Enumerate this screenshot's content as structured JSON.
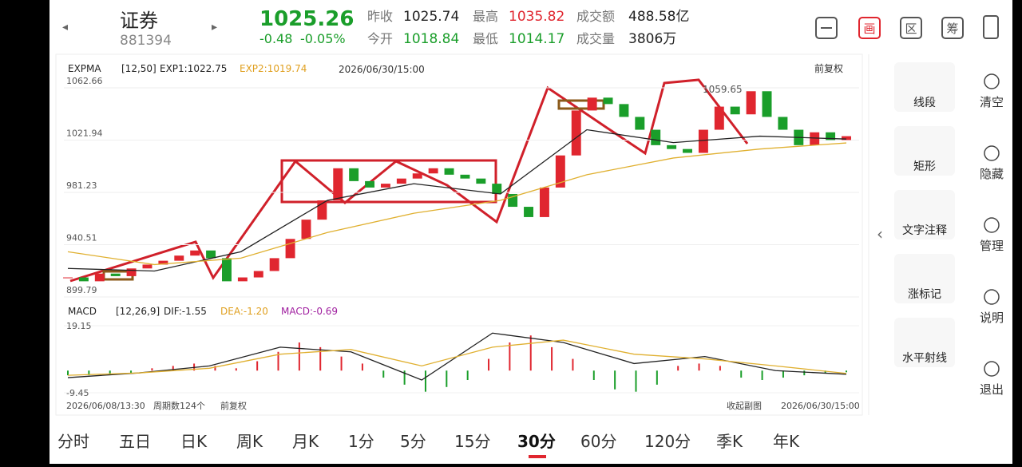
{
  "header": {
    "name": "证券",
    "code": "881394",
    "price": "1025.26",
    "change": "-0.48",
    "change_pct": "-0.05%",
    "stats": [
      [
        "昨收",
        "1025.74"
      ],
      [
        "最高",
        "1035.82"
      ],
      [
        "成交额",
        "488.58亿"
      ],
      [
        "今开",
        "1018.84"
      ],
      [
        "最低",
        "1014.17"
      ],
      [
        "成交量",
        "3806万"
      ]
    ],
    "icons": [
      "画",
      "区",
      "筹"
    ]
  },
  "main_chart": {
    "indicator": "EXPMA",
    "params": "[12,50]",
    "exp1_label": "EXP1:1022.75",
    "exp2_label": "EXP2:1019.74",
    "time": "2026/06/30/15:00",
    "adjust": "前复权",
    "high_note": "1059.65",
    "ylim": [
      899.79,
      1062.66
    ],
    "yticks": [
      899.79,
      940.51,
      981.23,
      1021.94,
      1062.66
    ],
    "close": [
      915,
      912,
      918,
      916,
      922,
      925,
      928,
      932,
      936,
      930,
      912,
      915,
      920,
      930,
      945,
      960,
      975,
      1000,
      990,
      985,
      988,
      992,
      996,
      1000,
      995,
      992,
      988,
      980,
      970,
      962,
      985,
      1010,
      1045,
      1055,
      1050,
      1040,
      1030,
      1018,
      1015,
      1012,
      1030,
      1048,
      1042,
      1060,
      1040,
      1030,
      1018,
      1028,
      1022,
      1025
    ],
    "exp1": [
      922,
      920,
      935,
      975,
      988,
      980,
      1030,
      1020,
      1025,
      1022.75
    ],
    "exp2": [
      935,
      925,
      930,
      950,
      965,
      975,
      995,
      1008,
      1015,
      1019.74
    ]
  },
  "macd_chart": {
    "indicator": "MACD",
    "params": "[12,26,9]",
    "dif_label": "DIF:-1.55",
    "dea_label": "DEA:-1.20",
    "macd_label": "MACD:-0.69",
    "ylim": [
      -9.45,
      19.15
    ],
    "yticks": [
      -9.45,
      19.15
    ],
    "hist": [
      -2,
      -2,
      -1.5,
      -1,
      1,
      2,
      3,
      2,
      1,
      4,
      8,
      12,
      10,
      6,
      3,
      -3,
      -6,
      -9,
      -7,
      -4,
      5,
      12,
      15,
      10,
      5,
      -4,
      -8,
      -9,
      -6,
      2,
      3,
      2,
      -3,
      -4,
      -3,
      -2,
      -1,
      -0.69
    ],
    "dif": [
      -3,
      -1,
      2,
      10,
      8,
      -4,
      16,
      12,
      3,
      6,
      0,
      -1.55
    ],
    "dea": [
      -2,
      -1,
      1,
      7,
      9,
      2,
      10,
      13,
      7,
      5,
      2,
      -1.2
    ]
  },
  "footer": {
    "start": "2026/06/08/13:30",
    "count": "周期数124个",
    "adjust": "前复权",
    "collapse": "收起副图",
    "end": "2026/06/30/15:00"
  },
  "tools": [
    "线段",
    "矩形",
    "文字注释",
    "涨标记",
    "水平射线"
  ],
  "side": [
    "清空",
    "隐藏",
    "管理",
    "说明",
    "退出"
  ],
  "periods": [
    "分时",
    "五日",
    "日K",
    "周K",
    "月K",
    "1分",
    "5分",
    "15分",
    "30分",
    "60分",
    "120分",
    "季K",
    "年K"
  ],
  "active_period": "30分"
}
